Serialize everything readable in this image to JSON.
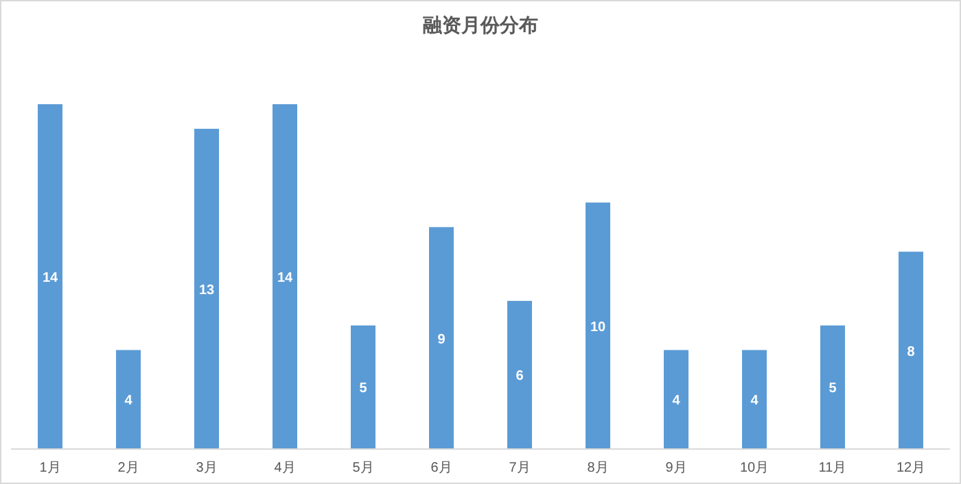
{
  "chart_data": {
    "type": "bar",
    "title": "融资月份分布",
    "categories": [
      "1月",
      "2月",
      "3月",
      "4月",
      "5月",
      "6月",
      "7月",
      "8月",
      "9月",
      "10月",
      "11月",
      "12月"
    ],
    "values": [
      14,
      4,
      13,
      14,
      5,
      9,
      6,
      10,
      4,
      4,
      5,
      8
    ],
    "color": "#5b9bd5",
    "data_labels": true
  }
}
